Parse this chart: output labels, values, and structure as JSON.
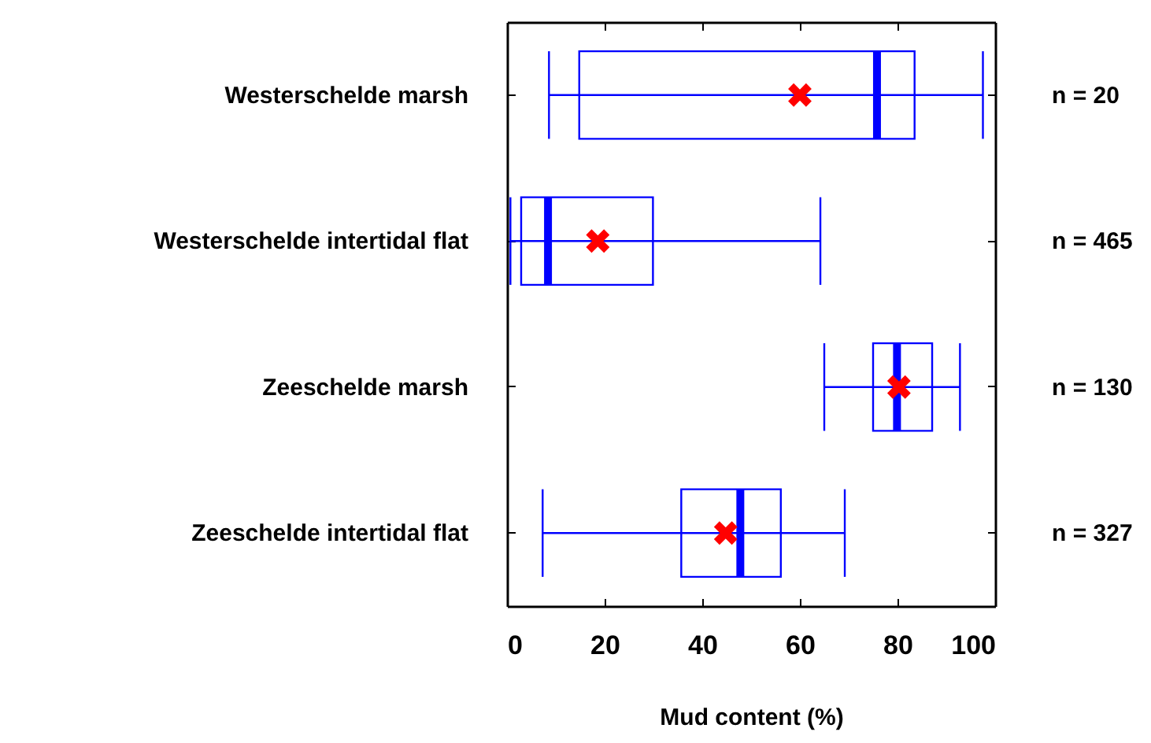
{
  "chart_data": {
    "type": "box",
    "orientation": "horizontal",
    "xlabel": "Mud content (%)",
    "categories": [
      "Westerschelde marsh",
      "Westerschelde intertidal flat",
      "Zeeschelde marsh",
      "Zeeschelde intertidal flat"
    ],
    "xlim": [
      0,
      100
    ],
    "xticks": [
      0,
      20,
      40,
      60,
      80,
      100
    ],
    "marker": "cross",
    "series": [
      {
        "color": "#0000ff",
        "boxes": [
          {
            "low": 8.6,
            "q1": 14.8,
            "median": 75.8,
            "q3": 83.5,
            "high": 97.5,
            "mean": 60
          },
          {
            "low": 0.7,
            "q1": 2.9,
            "median": 8.4,
            "q3": 29.9,
            "high": 64.2,
            "mean": 18.6
          },
          {
            "low": 65,
            "q1": 75,
            "median": 79.9,
            "q3": 87.1,
            "high": 92.8,
            "mean": 80.3
          },
          {
            "low": 7.3,
            "q1": 35.7,
            "median": 47.8,
            "q3": 56.1,
            "high": 69.2,
            "mean": 44.8
          }
        ]
      }
    ],
    "annotations": [
      "n = 20",
      "n = 465",
      "n = 130",
      "n = 327"
    ]
  }
}
